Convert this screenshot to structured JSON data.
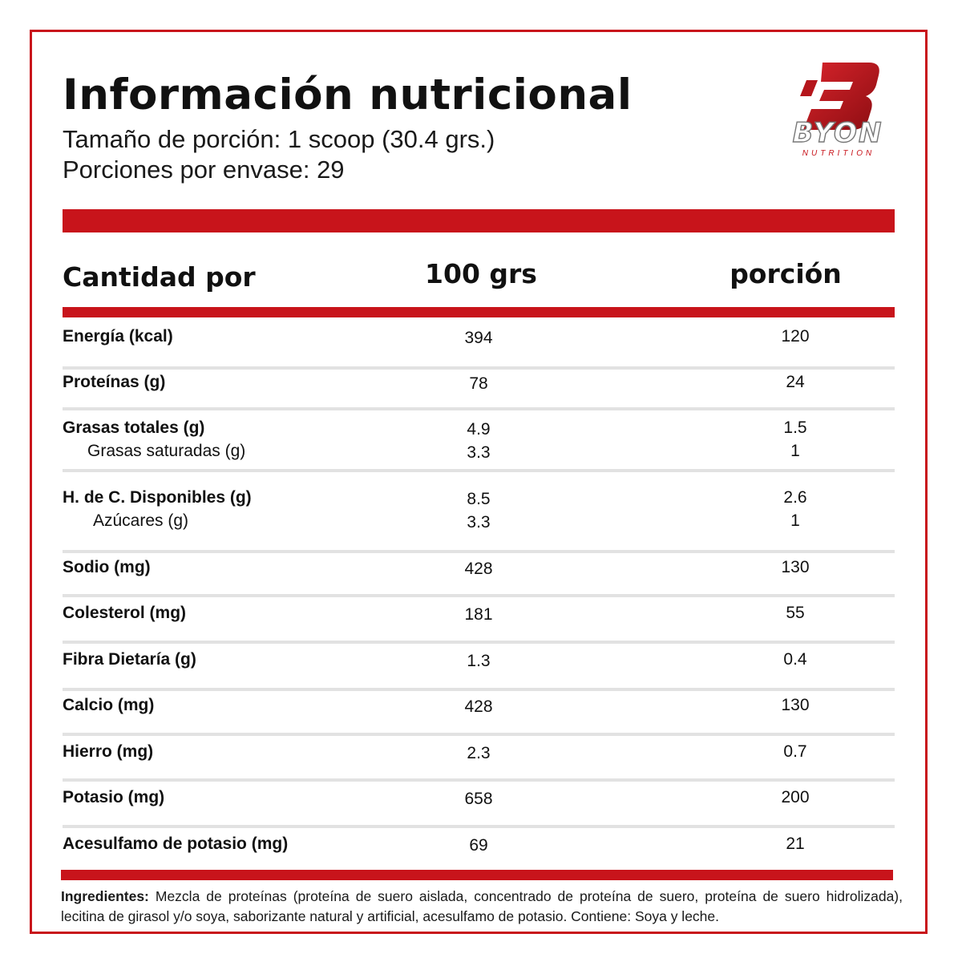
{
  "header": {
    "title": "Información nutricional",
    "serving_size": "Tamaño de porción: 1 scoop (30.4 grs.)",
    "servings_per_container": "Porciones por envase: 29"
  },
  "brand": {
    "name": "BYON",
    "tagline": "NUTRITION",
    "accent_color": "#c8141b"
  },
  "table": {
    "columns": {
      "label": "Cantidad por",
      "per_100": "100 grs",
      "per_serving": "porción"
    },
    "rows": [
      {
        "lines": [
          {
            "label": "Energía (kcal)",
            "per_100": "394",
            "per_serving": "120"
          }
        ]
      },
      {
        "lines": [
          {
            "label": "Proteínas (g)",
            "per_100": "78",
            "per_serving": "24"
          }
        ]
      },
      {
        "lines": [
          {
            "label": "Grasas totales (g)",
            "per_100": "4.9",
            "per_serving": "1.5"
          },
          {
            "label": "Grasas saturadas (g)",
            "per_100": "3.3",
            "per_serving": "1"
          }
        ]
      },
      {
        "lines": [
          {
            "label": "H. de C. Disponibles (g)",
            "per_100": "8.5",
            "per_serving": "2.6"
          },
          {
            "label": "Azúcares (g)",
            "per_100": "3.3",
            "per_serving": "1"
          }
        ]
      },
      {
        "lines": [
          {
            "label": "Sodio (mg)",
            "per_100": "428",
            "per_serving": "130"
          }
        ]
      },
      {
        "lines": [
          {
            "label": "Colesterol (mg)",
            "per_100": "181",
            "per_serving": "55"
          }
        ]
      },
      {
        "lines": [
          {
            "label": "Fibra Dietaría (g)",
            "per_100": "1.3",
            "per_serving": "0.4"
          }
        ]
      },
      {
        "lines": [
          {
            "label": "Calcio (mg)",
            "per_100": "428",
            "per_serving": "130"
          }
        ]
      },
      {
        "lines": [
          {
            "label": "Hierro (mg)",
            "per_100": "2.3",
            "per_serving": "0.7"
          }
        ]
      },
      {
        "lines": [
          {
            "label": "Potasio (mg)",
            "per_100": "658",
            "per_serving": "200"
          }
        ]
      },
      {
        "lines": [
          {
            "label": "Acesulfamo de potasio (mg)",
            "per_100": "69",
            "per_serving": "21"
          }
        ]
      }
    ]
  },
  "ingredients": {
    "heading": "Ingredientes:",
    "text": "Mezcla de proteínas (proteína de suero aislada, concentrado de proteína de suero, proteína de suero hidrolizada), lecitina de girasol y/o soya, saborizante natural y artificial, acesulfamo de potasio. Contiene: Soya y leche."
  }
}
